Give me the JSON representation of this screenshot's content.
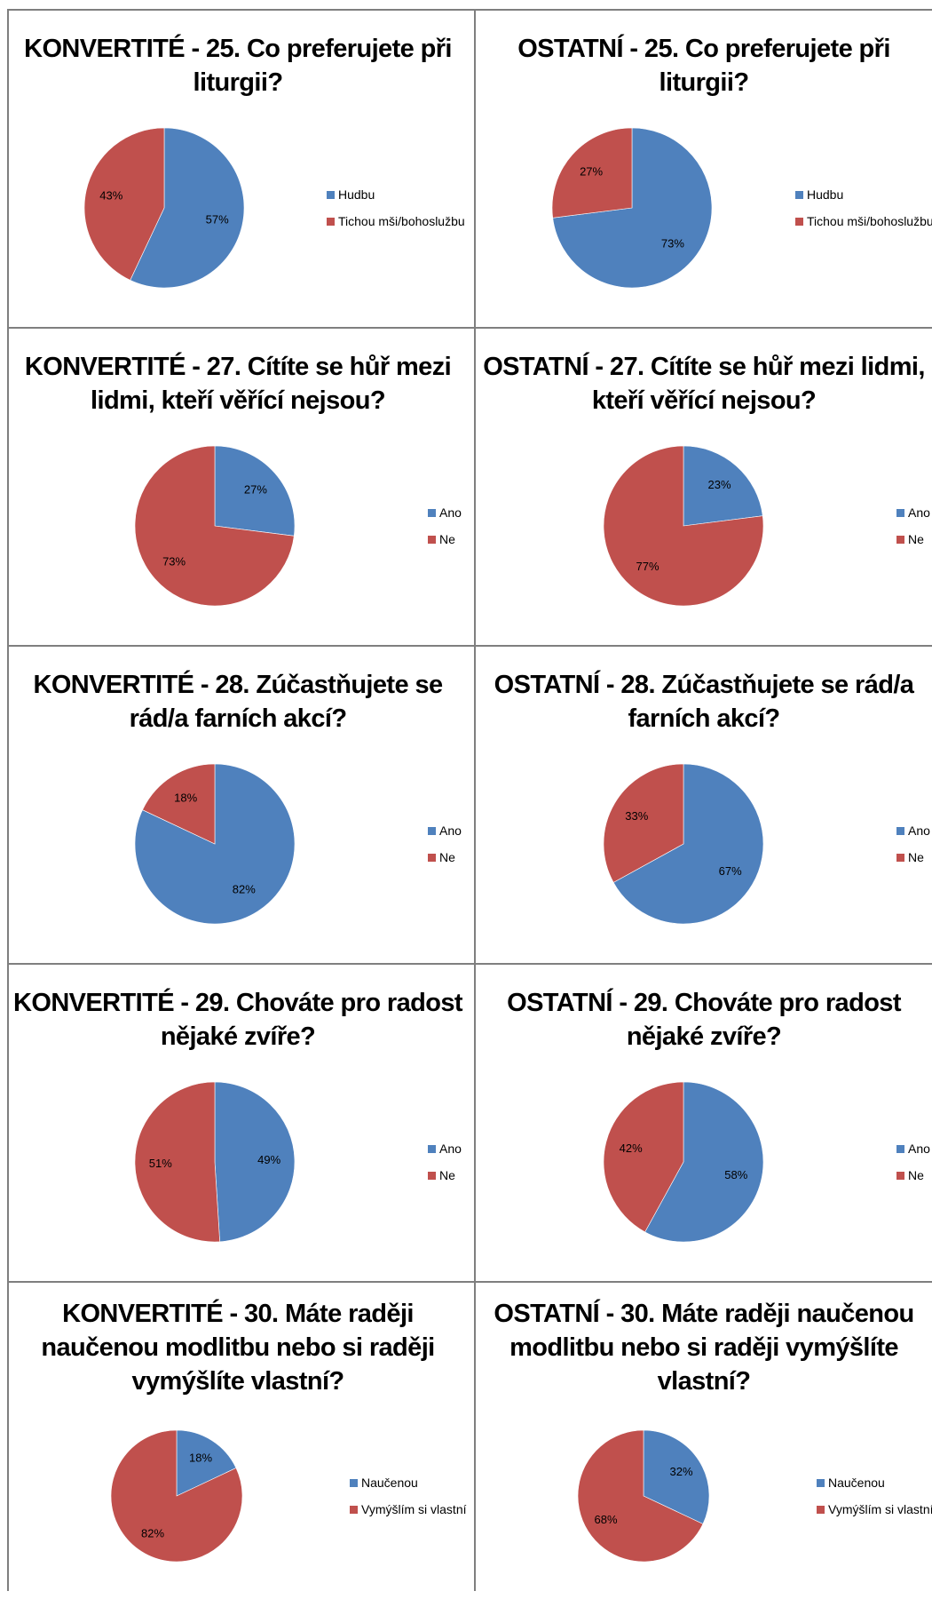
{
  "colors": {
    "series1": "#4F81BD",
    "series2": "#C0504D",
    "grid": "#7f7f7f"
  },
  "chart_data": [
    {
      "type": "pie",
      "title": [
        "KONVERTITÉ - 25. Co preferujete při",
        "liturgii?"
      ],
      "labels": [
        "Hudbu",
        "Tichou mši/bohoslužbu"
      ],
      "values": [
        57,
        43
      ],
      "value_labels": [
        "57%",
        "43%"
      ],
      "legend": "right"
    },
    {
      "type": "pie",
      "title": [
        "OSTATNÍ - 25. Co preferujete při",
        "liturgii?"
      ],
      "labels": [
        "Hudbu",
        "Tichou mši/bohoslužbu"
      ],
      "values": [
        73,
        27
      ],
      "value_labels": [
        "73%",
        "27%"
      ],
      "legend": "right"
    },
    {
      "type": "pie",
      "title": [
        "KONVERTITÉ - 27. Cítíte se hůř mezi",
        "lidmi, kteří věřící nejsou?"
      ],
      "labels": [
        "Ano",
        "Ne"
      ],
      "values": [
        27,
        73
      ],
      "value_labels": [
        "27%",
        "73%"
      ],
      "legend": "right"
    },
    {
      "type": "pie",
      "title": [
        "OSTATNÍ - 27. Cítíte se hůř mezi lidmi,",
        "kteří věřící nejsou?"
      ],
      "labels": [
        "Ano",
        "Ne"
      ],
      "values": [
        23,
        77
      ],
      "value_labels": [
        "23%",
        "77%"
      ],
      "legend": "right"
    },
    {
      "type": "pie",
      "title": [
        "KONVERTITÉ - 28. Zúčastňujete se",
        "rád/a farních akcí?"
      ],
      "labels": [
        "Ano",
        "Ne"
      ],
      "values": [
        82,
        18
      ],
      "value_labels": [
        "82%",
        "18%"
      ],
      "legend": "right"
    },
    {
      "type": "pie",
      "title": [
        "OSTATNÍ - 28. Zúčastňujete se rád/a",
        "farních akcí?"
      ],
      "labels": [
        "Ano",
        "Ne"
      ],
      "values": [
        67,
        33
      ],
      "value_labels": [
        "67%",
        "33%"
      ],
      "legend": "right"
    },
    {
      "type": "pie",
      "title": [
        "KONVERTITÉ - 29. Chováte pro radost",
        "nějaké zvíře?"
      ],
      "labels": [
        "Ano",
        "Ne"
      ],
      "values": [
        49,
        51
      ],
      "value_labels": [
        "49%",
        "51%"
      ],
      "legend": "right"
    },
    {
      "type": "pie",
      "title": [
        "OSTATNÍ - 29. Chováte pro radost",
        "nějaké zvíře?"
      ],
      "labels": [
        "Ano",
        "Ne"
      ],
      "values": [
        58,
        42
      ],
      "value_labels": [
        "58%",
        "42%"
      ],
      "legend": "right"
    },
    {
      "type": "pie",
      "title": [
        "KONVERTITÉ - 30. Máte raději",
        "naučenou modlitbu nebo si raději",
        "vymýšlíte vlastní?"
      ],
      "labels": [
        "Naučenou",
        "Vymýšlím si vlastní"
      ],
      "values": [
        18,
        82
      ],
      "value_labels": [
        "18%",
        "82%"
      ],
      "legend": "right"
    },
    {
      "type": "pie",
      "title": [
        "OSTATNÍ - 30. Máte raději naučenou",
        "modlitbu nebo si raději vymýšlíte",
        "vlastní?"
      ],
      "labels": [
        "Naučenou",
        "Vymýšlím si vlastní"
      ],
      "values": [
        32,
        68
      ],
      "value_labels": [
        "32%",
        "68%"
      ],
      "legend": "right"
    }
  ]
}
